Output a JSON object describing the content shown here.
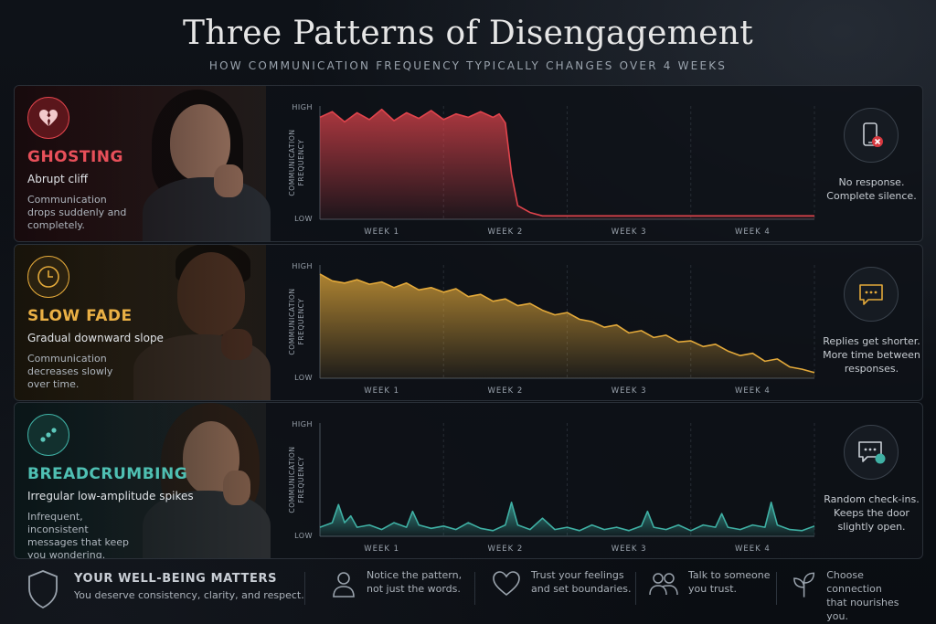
{
  "title": "Three Patterns of Disengagement",
  "subtitle": "HOW COMMUNICATION FREQUENCY TYPICALLY CHANGES OVER 4 WEEKS",
  "panels": [
    {
      "label": "GHOSTING",
      "subtitle": "Abrupt cliff",
      "description": "Communication drops suddenly and completely.",
      "note": "No response. Complete silence.",
      "icon": "broken-heart-icon",
      "side_icon": "phone-x-icon",
      "color": "#e0444c"
    },
    {
      "label": "SLOW FADE",
      "subtitle": "Gradual downward slope",
      "description": "Communication decreases slowly over time.",
      "note": "Replies get shorter. More time between responses.",
      "icon": "clock-icon",
      "side_icon": "chat-bubble-icon",
      "color": "#e3a93a"
    },
    {
      "label": "BREADCRUMBING",
      "subtitle": "Irregular low-amplitude spikes",
      "description": "Infrequent, inconsistent messages that keep you wondering.",
      "note": "Random check-ins. Keeps the door slightly open.",
      "icon": "dots-icon",
      "side_icon": "chat-dot-icon",
      "color": "#3fb0a4"
    }
  ],
  "chart_data": [
    {
      "type": "area",
      "ylabel": "COMMUNICATION FREQUENCY",
      "y_ticks": [
        "HIGH",
        "LOW"
      ],
      "x_ticks": [
        "WEEK 1",
        "WEEK 2",
        "WEEK 3",
        "WEEK 4"
      ],
      "ylim": [
        0,
        1
      ],
      "xlim": [
        0,
        4
      ],
      "grid": true,
      "series": [
        {
          "x": [
            0,
            0.1,
            0.2,
            0.3,
            0.4,
            0.5,
            0.6,
            0.7,
            0.8,
            0.9,
            1.0,
            1.1,
            1.2,
            1.3,
            1.4,
            1.45,
            1.5,
            1.55,
            1.6,
            1.7,
            1.8,
            2.0,
            2.5,
            3.0,
            3.5,
            4.0
          ],
          "values": [
            0.9,
            0.95,
            0.86,
            0.94,
            0.88,
            0.97,
            0.87,
            0.94,
            0.89,
            0.96,
            0.88,
            0.93,
            0.9,
            0.95,
            0.9,
            0.93,
            0.85,
            0.4,
            0.12,
            0.06,
            0.03,
            0.03,
            0.03,
            0.03,
            0.03,
            0.03
          ]
        }
      ]
    },
    {
      "type": "area",
      "ylabel": "COMMUNICATION FREQUENCY",
      "y_ticks": [
        "HIGH",
        "LOW"
      ],
      "x_ticks": [
        "WEEK 1",
        "WEEK 2",
        "WEEK 3",
        "WEEK 4"
      ],
      "ylim": [
        0,
        1
      ],
      "xlim": [
        0,
        4
      ],
      "grid": true,
      "series": [
        {
          "x": [
            0,
            0.1,
            0.2,
            0.3,
            0.4,
            0.5,
            0.6,
            0.7,
            0.8,
            0.9,
            1.0,
            1.1,
            1.2,
            1.3,
            1.4,
            1.5,
            1.6,
            1.7,
            1.8,
            1.9,
            2.0,
            2.1,
            2.2,
            2.3,
            2.4,
            2.5,
            2.6,
            2.7,
            2.8,
            2.9,
            3.0,
            3.1,
            3.2,
            3.3,
            3.4,
            3.5,
            3.6,
            3.7,
            3.8,
            3.9,
            4.0
          ],
          "values": [
            0.92,
            0.86,
            0.84,
            0.87,
            0.83,
            0.85,
            0.8,
            0.84,
            0.78,
            0.8,
            0.76,
            0.79,
            0.72,
            0.74,
            0.68,
            0.7,
            0.64,
            0.66,
            0.6,
            0.56,
            0.58,
            0.52,
            0.5,
            0.45,
            0.47,
            0.4,
            0.42,
            0.36,
            0.38,
            0.32,
            0.33,
            0.28,
            0.3,
            0.24,
            0.2,
            0.22,
            0.15,
            0.17,
            0.1,
            0.08,
            0.05
          ]
        }
      ]
    },
    {
      "type": "area",
      "ylabel": "COMMUNICATION FREQUENCY",
      "y_ticks": [
        "HIGH",
        "LOW"
      ],
      "x_ticks": [
        "WEEK 1",
        "WEEK 2",
        "WEEK 3",
        "WEEK 4"
      ],
      "ylim": [
        0,
        1
      ],
      "xlim": [
        0,
        4
      ],
      "grid": true,
      "series": [
        {
          "x": [
            0,
            0.1,
            0.15,
            0.2,
            0.25,
            0.3,
            0.4,
            0.5,
            0.6,
            0.7,
            0.75,
            0.8,
            0.9,
            1.0,
            1.1,
            1.2,
            1.3,
            1.4,
            1.5,
            1.55,
            1.6,
            1.7,
            1.8,
            1.9,
            2.0,
            2.1,
            2.2,
            2.3,
            2.4,
            2.5,
            2.6,
            2.65,
            2.7,
            2.8,
            2.9,
            3.0,
            3.1,
            3.2,
            3.25,
            3.3,
            3.4,
            3.5,
            3.6,
            3.65,
            3.7,
            3.8,
            3.9,
            4.0
          ],
          "values": [
            0.08,
            0.12,
            0.28,
            0.12,
            0.18,
            0.08,
            0.1,
            0.06,
            0.12,
            0.08,
            0.22,
            0.1,
            0.07,
            0.09,
            0.06,
            0.12,
            0.07,
            0.05,
            0.1,
            0.3,
            0.1,
            0.06,
            0.16,
            0.06,
            0.08,
            0.05,
            0.1,
            0.06,
            0.08,
            0.05,
            0.09,
            0.22,
            0.08,
            0.06,
            0.1,
            0.05,
            0.1,
            0.08,
            0.2,
            0.08,
            0.06,
            0.1,
            0.08,
            0.3,
            0.1,
            0.06,
            0.05,
            0.09
          ]
        }
      ]
    }
  ],
  "footer": {
    "heading": "YOUR WELL-BEING MATTERS",
    "heading_sub": "You deserve consistency, clarity, and respect.",
    "items": [
      {
        "icon": "person-icon",
        "line1": "Notice the pattern,",
        "line2": "not just the words."
      },
      {
        "icon": "heart-icon",
        "line1": "Trust your feelings",
        "line2": "and set boundaries."
      },
      {
        "icon": "people-icon",
        "line1": "Talk to someone",
        "line2": "you trust."
      },
      {
        "icon": "plant-icon",
        "line1": "Choose connection",
        "line2": "that nourishes you."
      }
    ]
  }
}
